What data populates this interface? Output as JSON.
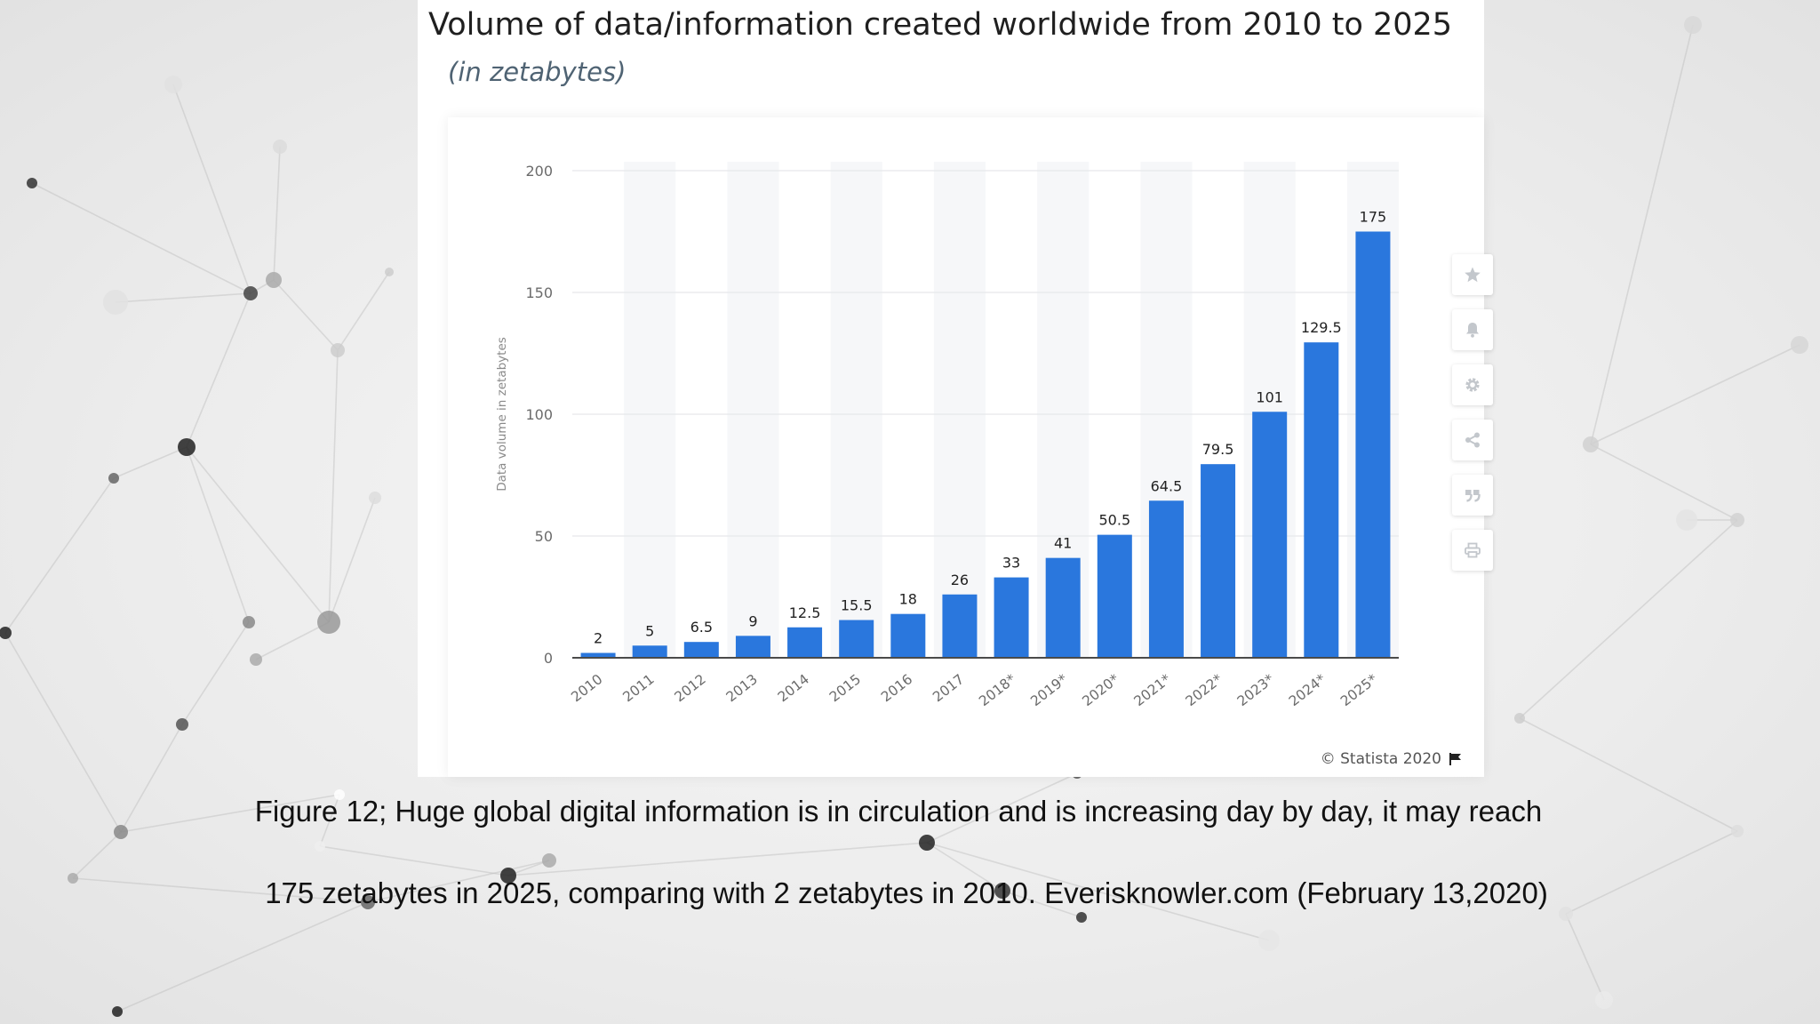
{
  "chart_data": {
    "type": "bar",
    "title": "Volume of data/information created worldwide from 2010 to 2025",
    "subtitle": "(in zetabytes)",
    "ylabel": "Data volume in zetabytes",
    "xlabel": "",
    "ylim": [
      0,
      200
    ],
    "yticks": [
      0,
      50,
      100,
      150,
      200
    ],
    "grid": true,
    "bar_color": "#2a77dd",
    "categories": [
      "2010",
      "2011",
      "2012",
      "2013",
      "2014",
      "2015",
      "2016",
      "2017",
      "2018*",
      "2019*",
      "2020*",
      "2021*",
      "2022*",
      "2023*",
      "2024*",
      "2025*"
    ],
    "values": [
      2,
      5,
      6.5,
      9,
      12.5,
      15.5,
      18,
      26,
      33,
      41,
      50.5,
      64.5,
      79.5,
      101,
      129.5,
      175
    ],
    "value_labels": [
      "2",
      "5",
      "6.5",
      "9",
      "12.5",
      "15.5",
      "18",
      "26",
      "33",
      "41",
      "50.5",
      "64.5",
      "79.5",
      "101",
      "129.5",
      "175"
    ]
  },
  "toolbar": {
    "icons": [
      "star-icon",
      "bell-icon",
      "gear-icon",
      "share-icon",
      "quote-icon",
      "print-icon"
    ]
  },
  "credit": "© Statista 2020",
  "caption": {
    "line1": "Figure 12; Huge global digital information is in circulation and is increasing day by day, it may reach",
    "line2": "175 zetabytes in 2025, comparing with 2 zetabytes in 2010. Everisknowler.com (February 13,2020)"
  }
}
